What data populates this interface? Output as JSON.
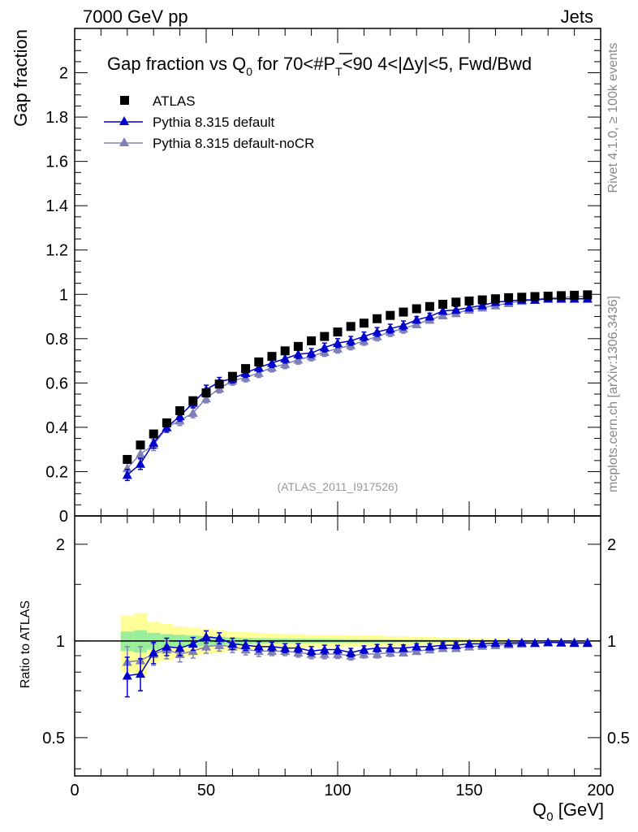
{
  "header": {
    "left": "7000 GeV pp",
    "right": "Jets"
  },
  "side": {
    "rivet": "Rivet 4.1.0, ≥ 100k events",
    "mcplots": "mcplots.cern.ch [arXiv:1306.3436]"
  },
  "watermark": "(ATLAS_2011_I917526)",
  "chart_data": [
    {
      "type": "scatter",
      "title_parts": {
        "a": "Gap fraction vs Q",
        "sub0": "0",
        "b": " for 70<#",
        "pbar": "P",
        "subT": "T",
        "c": "<90  4<|Δy|<5, Fwd/Bwd"
      },
      "ylabel": "Gap fraction",
      "xlim": [
        0,
        200
      ],
      "ylim": [
        0,
        2.2
      ],
      "y_ticks": [
        0,
        0.2,
        0.4,
        0.6,
        0.8,
        1,
        1.2,
        1.4,
        1.6,
        1.8,
        2
      ],
      "y_tick_labels": [
        "0",
        "0.2",
        "0.4",
        "0.6",
        "0.8",
        "1",
        "1.2",
        "1.4",
        "1.6",
        "1.8",
        "2"
      ],
      "x": [
        20,
        25,
        30,
        35,
        40,
        45,
        50,
        55,
        60,
        65,
        70,
        75,
        80,
        85,
        90,
        95,
        100,
        105,
        110,
        115,
        120,
        125,
        130,
        135,
        140,
        145,
        150,
        155,
        160,
        165,
        170,
        175,
        180,
        185,
        190,
        195
      ],
      "series": [
        {
          "name": "ATLAS",
          "marker": "square",
          "color": "#000000",
          "values": [
            0.255,
            0.32,
            0.37,
            0.42,
            0.475,
            0.52,
            0.555,
            0.595,
            0.63,
            0.665,
            0.695,
            0.72,
            0.745,
            0.765,
            0.79,
            0.81,
            0.83,
            0.855,
            0.87,
            0.89,
            0.905,
            0.92,
            0.935,
            0.945,
            0.955,
            0.965,
            0.97,
            0.975,
            0.98,
            0.985,
            0.987,
            0.99,
            0.992,
            0.994,
            0.996,
            0.998
          ]
        },
        {
          "name": "Pythia 8.315 default",
          "marker": "triangle",
          "color": "#0000cc",
          "values": [
            0.185,
            0.235,
            0.33,
            0.4,
            0.45,
            0.51,
            0.57,
            0.605,
            0.62,
            0.645,
            0.67,
            0.69,
            0.71,
            0.73,
            0.735,
            0.76,
            0.78,
            0.79,
            0.81,
            0.83,
            0.845,
            0.86,
            0.885,
            0.9,
            0.925,
            0.93,
            0.94,
            0.95,
            0.965,
            0.97,
            0.975,
            0.975,
            0.98,
            0.98,
            0.98,
            0.98
          ],
          "errors": [
            0.025,
            0.025,
            0.025,
            0.022,
            0.022,
            0.022,
            0.02,
            0.02,
            0.02,
            0.02,
            0.02,
            0.02,
            0.02,
            0.02,
            0.02,
            0.02,
            0.02,
            0.02,
            0.02,
            0.02,
            0.02,
            0.02,
            0.015,
            0.015,
            0.015,
            0.015,
            0.012,
            0.012,
            0.012,
            0.01,
            0.01,
            0.01,
            0.01,
            0.01,
            0.01,
            0.01
          ]
        },
        {
          "name": "Pythia 8.315 default-noCR",
          "marker": "triangle",
          "color": "#8080b8",
          "values": [
            0.215,
            0.28,
            0.32,
            0.4,
            0.43,
            0.465,
            0.53,
            0.575,
            0.61,
            0.625,
            0.645,
            0.67,
            0.685,
            0.705,
            0.72,
            0.74,
            0.755,
            0.77,
            0.79,
            0.81,
            0.83,
            0.845,
            0.865,
            0.885,
            0.905,
            0.915,
            0.93,
            0.94,
            0.95,
            0.96,
            0.97,
            0.975,
            0.985,
            0.985,
            0.99,
            0.99
          ],
          "errors": [
            0.025,
            0.025,
            0.025,
            0.022,
            0.022,
            0.022,
            0.02,
            0.02,
            0.02,
            0.02,
            0.02,
            0.02,
            0.02,
            0.02,
            0.02,
            0.02,
            0.02,
            0.02,
            0.02,
            0.02,
            0.02,
            0.02,
            0.015,
            0.015,
            0.015,
            0.015,
            0.012,
            0.012,
            0.012,
            0.01,
            0.01,
            0.01,
            0.01,
            0.01,
            0.01,
            0.01
          ]
        }
      ]
    },
    {
      "type": "scatter",
      "ylabel": "Ratio to ATLAS",
      "xlabel_parts": {
        "q": "Q",
        "sub": "0",
        "unit": " [GeV]"
      },
      "xlim": [
        0,
        200
      ],
      "ylim": [
        0.38,
        2.45
      ],
      "log_y": true,
      "x_ticks": [
        0,
        50,
        100,
        150,
        200
      ],
      "x_tick_labels": [
        "0",
        "50",
        "100",
        "150",
        "200"
      ],
      "y_ticks": [
        0.5,
        1,
        2
      ],
      "y_tick_labels": [
        "0.5",
        "1",
        "2"
      ],
      "x": [
        20,
        25,
        30,
        35,
        40,
        45,
        50,
        55,
        60,
        65,
        70,
        75,
        80,
        85,
        90,
        95,
        100,
        105,
        110,
        115,
        120,
        125,
        130,
        135,
        140,
        145,
        150,
        155,
        160,
        165,
        170,
        175,
        180,
        185,
        190,
        195
      ],
      "band_edges": [
        17.5,
        22.5,
        27.5,
        32.5,
        37.5,
        42.5,
        47.5,
        52.5,
        57.5,
        62.5,
        67.5,
        72.5,
        77.5,
        82.5,
        87.5,
        92.5,
        97.5,
        102.5,
        107.5,
        112.5,
        117.5,
        122.5,
        127.5,
        132.5,
        137.5,
        142.5,
        147.5,
        152.5,
        157.5,
        162.5,
        167.5,
        172.5,
        177.5,
        182.5,
        187.5,
        192.5,
        197.5
      ],
      "band_outer": [
        0.2,
        0.22,
        0.15,
        0.13,
        0.11,
        0.1,
        0.09,
        0.08,
        0.07,
        0.065,
        0.06,
        0.055,
        0.05,
        0.05,
        0.045,
        0.045,
        0.045,
        0.04,
        0.04,
        0.04,
        0.035,
        0.035,
        0.03,
        0.03,
        0.025,
        0.025,
        0.02,
        0.02,
        0.015,
        0.015,
        0.012,
        0.01,
        0.01,
        0.008,
        0.008,
        0.006
      ],
      "band_inner": [
        0.07,
        0.08,
        0.06,
        0.05,
        0.045,
        0.04,
        0.035,
        0.03,
        0.025,
        0.022,
        0.02,
        0.018,
        0.017,
        0.016,
        0.015,
        0.015,
        0.014,
        0.013,
        0.012,
        0.012,
        0.011,
        0.01,
        0.01,
        0.009,
        0.009,
        0.008,
        0.008,
        0.007,
        0.006,
        0.006,
        0.005,
        0.005,
        0.004,
        0.004,
        0.004,
        0.003
      ],
      "band_colors": {
        "outer": "#ffff99",
        "inner": "#99ee99"
      },
      "series": [
        {
          "name": "Pythia 8.315 default",
          "color": "#0000cc",
          "values": [
            0.78,
            0.79,
            0.92,
            0.96,
            0.95,
            0.98,
            1.03,
            1.02,
            0.98,
            0.97,
            0.96,
            0.96,
            0.95,
            0.95,
            0.93,
            0.94,
            0.94,
            0.92,
            0.94,
            0.95,
            0.95,
            0.95,
            0.96,
            0.96,
            0.97,
            0.97,
            0.98,
            0.98,
            0.985,
            0.985,
            0.988,
            0.985,
            0.99,
            0.988,
            0.985,
            0.985
          ],
          "errors": [
            0.11,
            0.09,
            0.07,
            0.06,
            0.05,
            0.045,
            0.045,
            0.04,
            0.04,
            0.035,
            0.035,
            0.03,
            0.03,
            0.03,
            0.03,
            0.03,
            0.028,
            0.028,
            0.025,
            0.025,
            0.025,
            0.022,
            0.02,
            0.02,
            0.018,
            0.018,
            0.016,
            0.015,
            0.014,
            0.013,
            0.012,
            0.012,
            0.011,
            0.011,
            0.01,
            0.01
          ]
        },
        {
          "name": "Pythia 8.315 default-noCR",
          "color": "#8080b8",
          "values": [
            0.86,
            0.87,
            0.91,
            0.94,
            0.91,
            0.93,
            0.96,
            0.97,
            0.96,
            0.94,
            0.93,
            0.93,
            0.93,
            0.92,
            0.91,
            0.91,
            0.91,
            0.9,
            0.91,
            0.91,
            0.92,
            0.92,
            0.93,
            0.94,
            0.95,
            0.95,
            0.96,
            0.965,
            0.97,
            0.975,
            0.98,
            0.985,
            0.99,
            0.99,
            0.993,
            0.993
          ],
          "errors": [
            0.1,
            0.09,
            0.07,
            0.06,
            0.05,
            0.045,
            0.045,
            0.04,
            0.04,
            0.035,
            0.035,
            0.03,
            0.03,
            0.03,
            0.03,
            0.03,
            0.028,
            0.028,
            0.025,
            0.025,
            0.025,
            0.022,
            0.02,
            0.02,
            0.018,
            0.018,
            0.016,
            0.015,
            0.014,
            0.013,
            0.012,
            0.012,
            0.011,
            0.011,
            0.01,
            0.01
          ]
        }
      ]
    }
  ]
}
